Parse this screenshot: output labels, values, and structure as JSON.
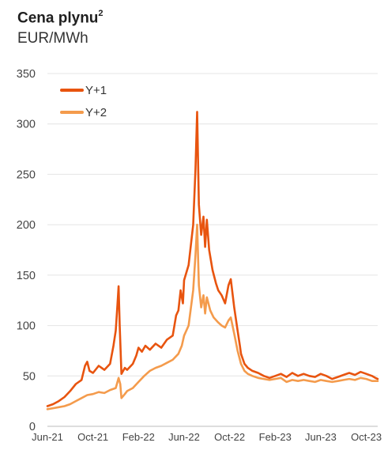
{
  "chart_data": {
    "type": "line",
    "title": "Cena plynu",
    "title_sup": "2",
    "subtitle": "EUR/MWh",
    "ylim": [
      0,
      350
    ],
    "yticks": [
      "0",
      "50",
      "100",
      "150",
      "200",
      "250",
      "300",
      "350"
    ],
    "xticks": [
      "Jun-21",
      "Oct-21",
      "Feb-22",
      "Jun-22",
      "Oct-22",
      "Feb-23",
      "Jun-23",
      "Oct-23"
    ],
    "grid": true,
    "legend_position": "top-left",
    "series": [
      {
        "name": "Y+1",
        "color": "#e8540f",
        "points": [
          [
            0,
            20
          ],
          [
            0.5,
            22
          ],
          [
            1.0,
            25
          ],
          [
            1.5,
            29
          ],
          [
            2.0,
            35
          ],
          [
            2.5,
            42
          ],
          [
            3.0,
            46
          ],
          [
            3.3,
            60
          ],
          [
            3.5,
            64
          ],
          [
            3.7,
            55
          ],
          [
            4.0,
            53
          ],
          [
            4.5,
            60
          ],
          [
            5.0,
            56
          ],
          [
            5.5,
            62
          ],
          [
            5.8,
            80
          ],
          [
            6.0,
            95
          ],
          [
            6.15,
            120
          ],
          [
            6.25,
            139
          ],
          [
            6.35,
            100
          ],
          [
            6.5,
            52
          ],
          [
            6.8,
            58
          ],
          [
            7.0,
            56
          ],
          [
            7.5,
            62
          ],
          [
            7.8,
            70
          ],
          [
            8.0,
            78
          ],
          [
            8.3,
            74
          ],
          [
            8.6,
            80
          ],
          [
            9.0,
            76
          ],
          [
            9.5,
            82
          ],
          [
            10.0,
            78
          ],
          [
            10.5,
            86
          ],
          [
            11.0,
            90
          ],
          [
            11.3,
            110
          ],
          [
            11.5,
            115
          ],
          [
            11.7,
            135
          ],
          [
            11.9,
            122
          ],
          [
            12.0,
            145
          ],
          [
            12.4,
            160
          ],
          [
            12.8,
            200
          ],
          [
            13.0,
            255
          ],
          [
            13.15,
            312
          ],
          [
            13.3,
            220
          ],
          [
            13.5,
            190
          ],
          [
            13.7,
            208
          ],
          [
            13.85,
            178
          ],
          [
            14.0,
            205
          ],
          [
            14.2,
            175
          ],
          [
            14.5,
            155
          ],
          [
            14.8,
            142
          ],
          [
            15.0,
            135
          ],
          [
            15.3,
            130
          ],
          [
            15.6,
            122
          ],
          [
            15.9,
            140
          ],
          [
            16.1,
            146
          ],
          [
            16.4,
            118
          ],
          [
            16.7,
            95
          ],
          [
            16.9,
            80
          ],
          [
            17.0,
            72
          ],
          [
            17.3,
            62
          ],
          [
            17.6,
            58
          ],
          [
            18.0,
            55
          ],
          [
            18.5,
            53
          ],
          [
            19.0,
            50
          ],
          [
            19.5,
            48
          ],
          [
            20.0,
            50
          ],
          [
            20.5,
            52
          ],
          [
            21.0,
            49
          ],
          [
            21.5,
            53
          ],
          [
            22.0,
            50
          ],
          [
            22.5,
            52
          ],
          [
            23.0,
            50
          ],
          [
            23.5,
            49
          ],
          [
            24.0,
            52
          ],
          [
            24.5,
            50
          ],
          [
            25.0,
            47
          ],
          [
            25.5,
            49
          ],
          [
            26.0,
            51
          ],
          [
            26.5,
            53
          ],
          [
            27.0,
            51
          ],
          [
            27.5,
            54
          ],
          [
            28.0,
            52
          ],
          [
            28.5,
            50
          ],
          [
            28.8,
            48
          ],
          [
            29.0,
            47
          ]
        ]
      },
      {
        "name": "Y+2",
        "color": "#f49b4c",
        "points": [
          [
            0,
            17
          ],
          [
            0.5,
            18
          ],
          [
            1.0,
            19
          ],
          [
            1.5,
            20
          ],
          [
            2.0,
            22
          ],
          [
            2.5,
            25
          ],
          [
            3.0,
            28
          ],
          [
            3.5,
            31
          ],
          [
            4.0,
            32
          ],
          [
            4.5,
            34
          ],
          [
            5.0,
            33
          ],
          [
            5.5,
            36
          ],
          [
            6.0,
            38
          ],
          [
            6.25,
            48
          ],
          [
            6.4,
            42
          ],
          [
            6.5,
            28
          ],
          [
            6.8,
            32
          ],
          [
            7.0,
            35
          ],
          [
            7.5,
            38
          ],
          [
            8.0,
            44
          ],
          [
            8.5,
            50
          ],
          [
            9.0,
            55
          ],
          [
            9.5,
            58
          ],
          [
            10.0,
            60
          ],
          [
            10.5,
            63
          ],
          [
            11.0,
            66
          ],
          [
            11.5,
            72
          ],
          [
            11.8,
            80
          ],
          [
            12.0,
            90
          ],
          [
            12.4,
            100
          ],
          [
            12.8,
            135
          ],
          [
            13.0,
            170
          ],
          [
            13.15,
            200
          ],
          [
            13.3,
            140
          ],
          [
            13.5,
            118
          ],
          [
            13.7,
            130
          ],
          [
            13.85,
            112
          ],
          [
            14.0,
            128
          ],
          [
            14.3,
            115
          ],
          [
            14.6,
            108
          ],
          [
            15.0,
            103
          ],
          [
            15.3,
            100
          ],
          [
            15.6,
            98
          ],
          [
            15.9,
            105
          ],
          [
            16.1,
            108
          ],
          [
            16.4,
            92
          ],
          [
            16.7,
            75
          ],
          [
            17.0,
            62
          ],
          [
            17.3,
            55
          ],
          [
            17.6,
            52
          ],
          [
            18.0,
            50
          ],
          [
            18.5,
            48
          ],
          [
            19.0,
            47
          ],
          [
            19.5,
            46
          ],
          [
            20.0,
            47
          ],
          [
            20.5,
            48
          ],
          [
            21.0,
            44
          ],
          [
            21.5,
            46
          ],
          [
            22.0,
            45
          ],
          [
            22.5,
            46
          ],
          [
            23.0,
            45
          ],
          [
            23.5,
            44
          ],
          [
            24.0,
            46
          ],
          [
            24.5,
            45
          ],
          [
            25.0,
            44
          ],
          [
            25.5,
            45
          ],
          [
            26.0,
            46
          ],
          [
            26.5,
            47
          ],
          [
            27.0,
            46
          ],
          [
            27.5,
            48
          ],
          [
            28.0,
            47
          ],
          [
            28.5,
            45
          ],
          [
            29.0,
            45
          ]
        ]
      }
    ]
  },
  "colors": {
    "grid": "#e4e4e4",
    "axis": "#bbbbbb"
  }
}
